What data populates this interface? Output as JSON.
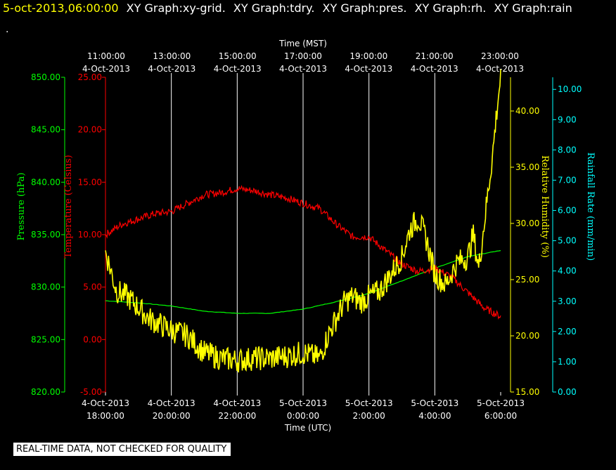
{
  "header": {
    "date": "5-oct-2013,06:00:00",
    "titles": [
      "XY Graph:xy-grid.",
      "XY Graph:tdry.",
      "XY Graph:pres.",
      "XY Graph:rh.",
      "XY Graph:rain"
    ],
    "dot": "."
  },
  "footer": "REAL-TIME DATA, NOT CHECKED FOR QUALITY",
  "colors": {
    "pressure": "#00ff00",
    "temperature": "#ff0000",
    "humidity": "#ffff00",
    "rain": "#00ffff",
    "grid": "#ffffff",
    "text": "#ffffff",
    "background": "#000000"
  },
  "chart_data": {
    "type": "line",
    "top_axis_title": "Time (MST)",
    "bottom_axis_title": "Time (UTC)",
    "top_ticks": [
      {
        "date": "4-Oct-2013",
        "time": "11:00:00"
      },
      {
        "date": "4-Oct-2013",
        "time": "13:00:00"
      },
      {
        "date": "4-Oct-2013",
        "time": "15:00:00"
      },
      {
        "date": "4-Oct-2013",
        "time": "17:00:00"
      },
      {
        "date": "4-Oct-2013",
        "time": "19:00:00"
      },
      {
        "date": "4-Oct-2013",
        "time": "21:00:00"
      },
      {
        "date": "4-Oct-2013",
        "time": "23:00:00"
      }
    ],
    "bottom_ticks": [
      {
        "date": "4-Oct-2013",
        "time": "18:00:00"
      },
      {
        "date": "4-Oct-2013",
        "time": "20:00:00"
      },
      {
        "date": "4-Oct-2013",
        "time": "22:00:00"
      },
      {
        "date": "5-Oct-2013",
        "time": "0:00:00"
      },
      {
        "date": "5-Oct-2013",
        "time": "2:00:00"
      },
      {
        "date": "5-Oct-2013",
        "time": "4:00:00"
      },
      {
        "date": "5-Oct-2013",
        "time": "6:00:00"
      }
    ],
    "x_range_hours_utc": [
      "4-Oct-2013 18:00:00",
      "5-Oct-2013 6:00:00"
    ],
    "grid": "vertical lines at each time tick",
    "axes": {
      "pressure": {
        "label": "Pressure (hPa)",
        "ticks": [
          "850.00",
          "845.00",
          "840.00",
          "835.00",
          "830.00",
          "825.00",
          "820.00"
        ],
        "range": [
          820,
          850
        ],
        "side": "left"
      },
      "temperature": {
        "label": "Temperature (Celsius)",
        "ticks": [
          "25.00",
          "20.00",
          "15.00",
          "10.00",
          "5.00",
          "0.00",
          "-5.00"
        ],
        "range": [
          -5,
          25
        ],
        "side": "left"
      },
      "humidity": {
        "label": "Relative Humidity (%)",
        "ticks": [
          "40.00",
          "35.00",
          "30.00",
          "25.00",
          "20.00",
          "15.00"
        ],
        "range": [
          15,
          43
        ],
        "side": "right"
      },
      "rain": {
        "label": "Rainfall Rate (mm/min)",
        "ticks": [
          "10.00",
          "9.00",
          "8.00",
          "7.00",
          "6.00",
          "5.00",
          "4.00",
          "3.00",
          "2.00",
          "1.00",
          "0.00"
        ],
        "range": [
          0,
          10.4
        ],
        "side": "right"
      }
    },
    "series": [
      {
        "name": "Pressure (hPa)",
        "key": "pressure",
        "x": [
          "18:00",
          "19:00",
          "20:00",
          "21:00",
          "22:00",
          "23:00",
          "0:00",
          "1:00",
          "2:00",
          "3:00",
          "4:00",
          "5:00",
          "6:00"
        ],
        "values": [
          828.7,
          828.5,
          828.2,
          827.7,
          827.5,
          827.5,
          827.9,
          828.6,
          829.4,
          830.6,
          831.8,
          832.9,
          833.5
        ]
      },
      {
        "name": "Temperature (Celsius)",
        "key": "temperature",
        "x": [
          "18:00",
          "18:30",
          "19:00",
          "19:30",
          "20:00",
          "20:30",
          "21:00",
          "21:30",
          "22:00",
          "22:30",
          "23:00",
          "23:30",
          "0:00",
          "0:30",
          "1:00",
          "1:30",
          "2:00",
          "2:30",
          "3:00",
          "3:30",
          "4:00",
          "4:30",
          "5:00",
          "5:30",
          "6:00"
        ],
        "values": [
          10.0,
          11.0,
          11.5,
          12.0,
          12.2,
          13.0,
          13.8,
          14.0,
          14.4,
          14.2,
          13.8,
          13.5,
          13.0,
          12.5,
          11.0,
          9.8,
          9.8,
          8.5,
          7.2,
          6.5,
          6.8,
          6.0,
          4.5,
          3.0,
          2.2
        ]
      },
      {
        "name": "Relative Humidity (%)",
        "key": "humidity",
        "x": [
          "18:00",
          "18:20",
          "18:40",
          "19:00",
          "19:20",
          "19:40",
          "20:00",
          "20:30",
          "21:00",
          "21:30",
          "22:00",
          "22:30",
          "23:00",
          "23:30",
          "0:00",
          "0:30",
          "0:45",
          "1:00",
          "1:15",
          "1:30",
          "1:45",
          "2:00",
          "2:20",
          "2:40",
          "3:00",
          "3:15",
          "3:30",
          "3:45",
          "4:00",
          "4:10",
          "4:20",
          "4:40",
          "5:00",
          "5:10",
          "5:20",
          "5:30",
          "5:45",
          "5:55",
          "6:00"
        ],
        "values": [
          27.5,
          24.0,
          23.5,
          22.5,
          21.5,
          21.0,
          20.5,
          20.0,
          18.5,
          18.0,
          17.8,
          18.0,
          18.0,
          18.2,
          18.5,
          18.0,
          20.0,
          21.5,
          23.0,
          23.5,
          23.0,
          23.5,
          24.0,
          25.5,
          27.0,
          29.5,
          30.5,
          28.5,
          25.5,
          25.0,
          24.5,
          26.5,
          27.0,
          29.0,
          26.0,
          30.0,
          36.0,
          41.0,
          43.0
        ]
      },
      {
        "name": "Rainfall Rate (mm/min)",
        "key": "rain",
        "x": [
          "18:00",
          "6:00"
        ],
        "values": [
          0,
          0
        ]
      }
    ]
  }
}
